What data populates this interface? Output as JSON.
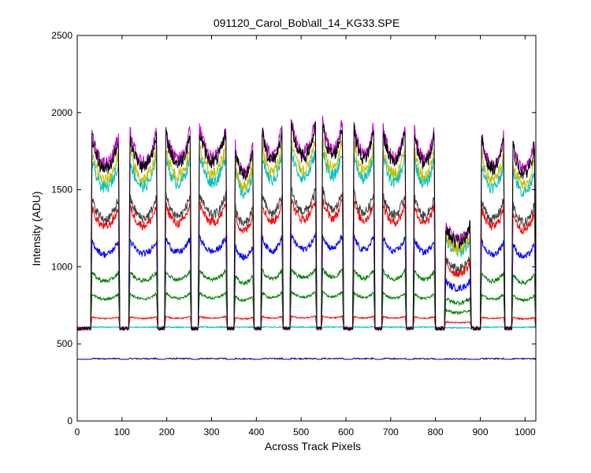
{
  "chart_data": {
    "type": "line",
    "title": "091120_Carol_Bob\\all_14_KG33.SPE",
    "xlabel": "Across Track Pixels",
    "ylabel": "Intensity (ADU)",
    "xlim": [
      0,
      1024
    ],
    "ylim": [
      0,
      2500
    ],
    "xticks": [
      "0",
      "100",
      "200",
      "300",
      "400",
      "500",
      "600",
      "700",
      "800",
      "900",
      "1000"
    ],
    "yticks": [
      "0",
      "500",
      "1000",
      "1500",
      "2000",
      "2500"
    ],
    "grid": false,
    "legend": "none",
    "profile": {
      "segments": [
        [
          30,
          95
        ],
        [
          115,
          180
        ],
        [
          195,
          255
        ],
        [
          270,
          335
        ],
        [
          350,
          395
        ],
        [
          410,
          460
        ],
        [
          475,
          535
        ],
        [
          545,
          595
        ],
        [
          615,
          665
        ],
        [
          680,
          735
        ],
        [
          750,
          800
        ],
        [
          820,
          880
        ],
        [
          900,
          955
        ],
        [
          970,
          1024
        ]
      ],
      "segment_weights": [
        0.96,
        0.97,
        0.99,
        1.0,
        0.92,
        1.01,
        1.03,
        1.04,
        1.02,
        1.0,
        0.99,
        0.52,
        0.96,
        0.93
      ]
    },
    "series": [
      {
        "color": "#0000a0",
        "baseline": 400,
        "peak": 405
      },
      {
        "color": "#00bfbf",
        "baseline": 600,
        "peak": 610
      },
      {
        "color": "#ff0000",
        "baseline": 605,
        "peak": 680
      },
      {
        "color": "#008000",
        "baseline": 600,
        "peak": 840
      },
      {
        "color": "#008000",
        "baseline": 600,
        "peak": 990
      },
      {
        "color": "#0000ff",
        "baseline": 600,
        "peak": 1210
      },
      {
        "color": "#ff0000",
        "baseline": 600,
        "peak": 1440
      },
      {
        "color": "#404040",
        "baseline": 600,
        "peak": 1500
      },
      {
        "color": "#00bfbf",
        "baseline": 600,
        "peak": 1760
      },
      {
        "color": "#bfbf00",
        "baseline": 600,
        "peak": 1820
      },
      {
        "color": "#bf00bf",
        "baseline": 600,
        "peak": 1950
      },
      {
        "color": "#000000",
        "baseline": 600,
        "peak": 1920
      }
    ]
  }
}
